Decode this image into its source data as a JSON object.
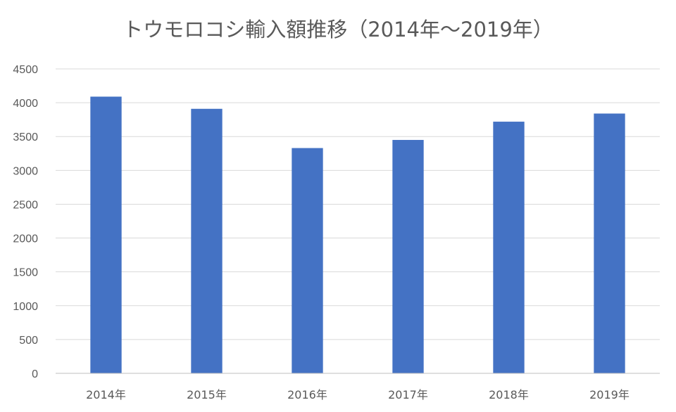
{
  "chart_data": {
    "type": "bar",
    "title": "トウモロコシ輸入額推移（2014年～2019年）",
    "xlabel": "",
    "ylabel": "",
    "categories": [
      "2014年",
      "2015年",
      "2016年",
      "2017年",
      "2018年",
      "2019年"
    ],
    "values": [
      4090,
      3910,
      3330,
      3450,
      3720,
      3840
    ],
    "ylim": [
      0,
      4500
    ],
    "yticks": [
      0,
      500,
      1000,
      1500,
      2000,
      2500,
      3000,
      3500,
      4000,
      4500
    ],
    "grid": true,
    "legend": "none",
    "bar_color": "#4472c4",
    "grid_color": "#d9d9d9",
    "text_color": "#595959"
  }
}
